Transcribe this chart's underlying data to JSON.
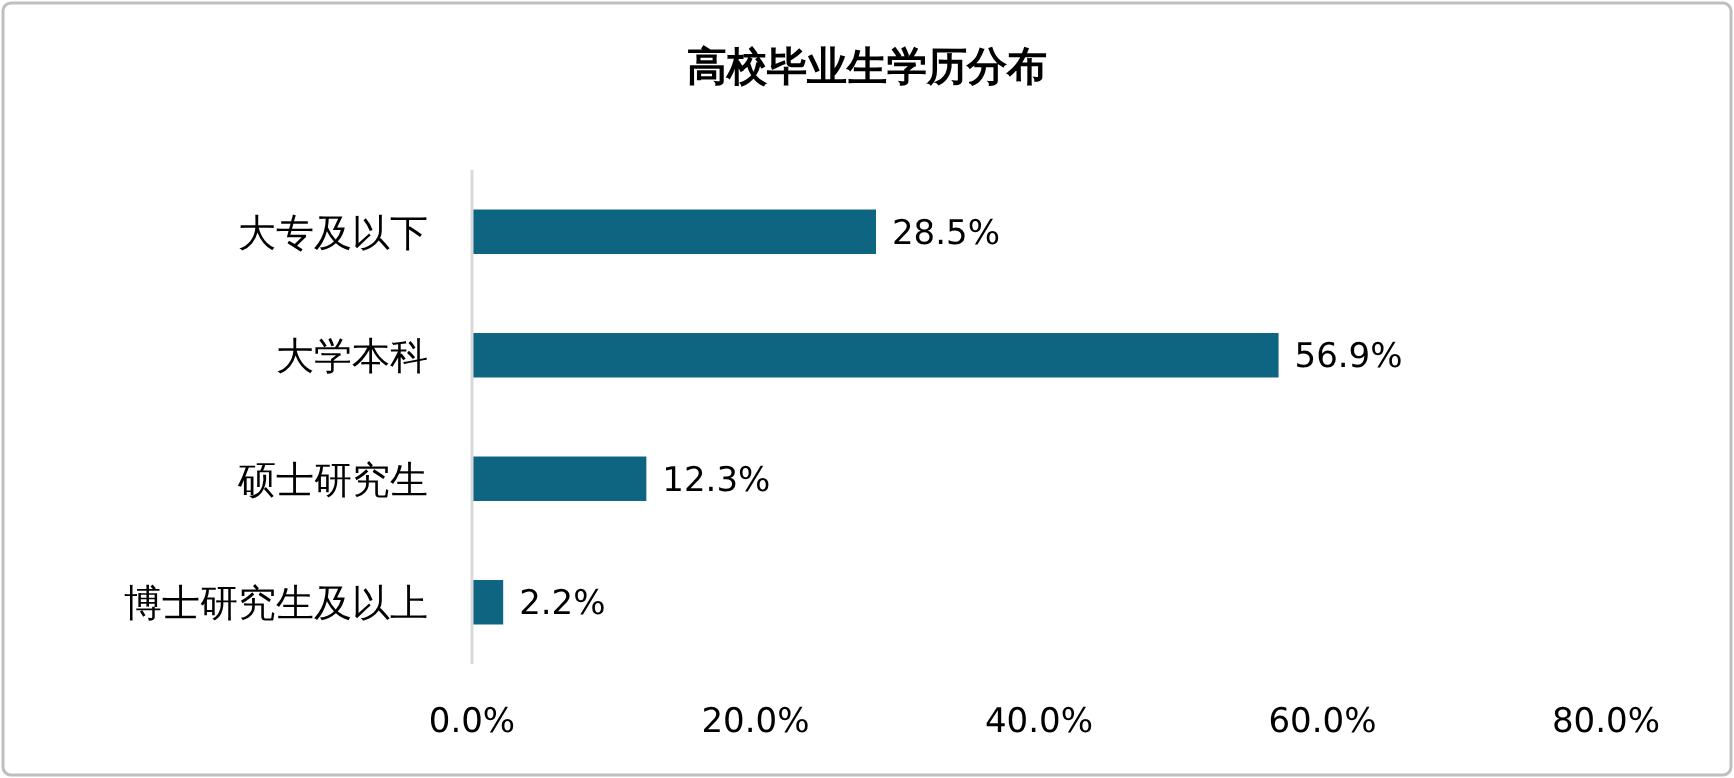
{
  "chart_data": {
    "type": "bar",
    "orientation": "horizontal",
    "title": "高校毕业生学历分布",
    "categories": [
      "大专及以下",
      "大学本科",
      "硕士研究生",
      "博士研究生及以上"
    ],
    "values": [
      28.5,
      56.9,
      12.3,
      2.2
    ],
    "value_labels": [
      "28.5%",
      "56.9%",
      "12.3%",
      "2.2%"
    ],
    "color": "#0e6582",
    "xlim": [
      0,
      80
    ],
    "xticks": [
      {
        "value": 0,
        "label": "0.0%"
      },
      {
        "value": 20,
        "label": "20.0%"
      },
      {
        "value": 40,
        "label": "40.0%"
      },
      {
        "value": 60,
        "label": "60.0%"
      },
      {
        "value": 80,
        "label": "80.0%"
      }
    ],
    "grid": false
  }
}
